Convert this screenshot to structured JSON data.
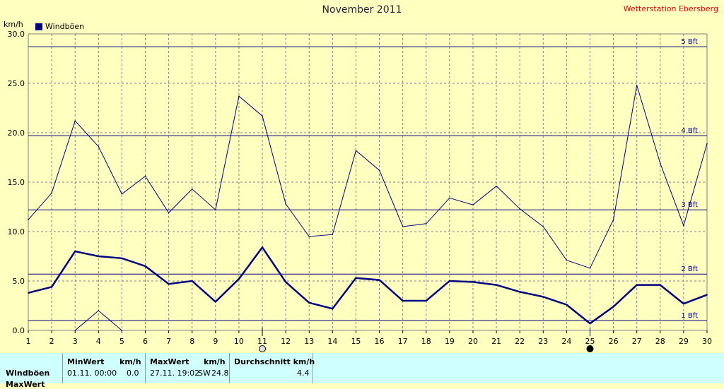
{
  "header": {
    "title": "November 2011",
    "station": "Wetterstation Ebersberg",
    "unit": "km/h"
  },
  "legend": {
    "label": "Windböen"
  },
  "chart_data": {
    "type": "line",
    "title": "November 2011",
    "ylabel": "km/h",
    "xlim": [
      1,
      30
    ],
    "ylim": [
      0,
      30
    ],
    "grid": true,
    "legend_position": "top-left",
    "x_ticks": [
      1,
      2,
      3,
      4,
      5,
      6,
      7,
      8,
      9,
      10,
      11,
      12,
      13,
      14,
      15,
      16,
      17,
      18,
      19,
      20,
      21,
      22,
      23,
      24,
      25,
      26,
      27,
      28,
      29,
      30
    ],
    "y_ticks": [
      "0.0",
      "5.0",
      "10.0",
      "15.0",
      "20.0",
      "25.0",
      "30.0"
    ],
    "beaufort_lines": [
      {
        "label": "1 Bft",
        "value": 1.0
      },
      {
        "label": "2 Bft",
        "value": 5.7
      },
      {
        "label": "3 Bft",
        "value": 12.2
      },
      {
        "label": "4 Bft",
        "value": 19.7
      },
      {
        "label": "5 Bft",
        "value": 28.7
      }
    ],
    "series": [
      {
        "name": "Windböen",
        "role": "average",
        "x": [
          1,
          2,
          3,
          4,
          5,
          6,
          7,
          8,
          9,
          10,
          11,
          12,
          13,
          14,
          15,
          16,
          17,
          18,
          19,
          20,
          21,
          22,
          23,
          24,
          25,
          26,
          27,
          28,
          29,
          30
        ],
        "values": [
          3.8,
          4.4,
          8.0,
          7.5,
          7.3,
          6.5,
          4.7,
          5.0,
          2.9,
          5.2,
          8.4,
          4.9,
          2.8,
          2.2,
          5.3,
          5.1,
          3.0,
          3.0,
          5.0,
          4.9,
          4.6,
          3.9,
          3.4,
          2.6,
          0.7,
          2.4,
          4.6,
          4.6,
          2.7,
          3.6
        ],
        "color": "#000080",
        "width": 2.5
      },
      {
        "role": "max",
        "x": [
          1,
          2,
          3,
          4,
          5,
          6,
          7,
          8,
          9,
          10,
          11,
          12,
          13,
          14,
          15,
          16,
          17,
          18,
          19,
          20,
          21,
          22,
          23,
          24,
          25,
          26,
          27,
          28,
          29,
          30
        ],
        "values": [
          11.2,
          13.9,
          21.2,
          18.6,
          13.8,
          15.6,
          11.9,
          14.3,
          12.2,
          23.7,
          21.7,
          12.8,
          9.5,
          9.7,
          18.2,
          16.2,
          10.5,
          10.8,
          13.4,
          12.7,
          14.6,
          12.3,
          10.5,
          7.1,
          6.3,
          11.2,
          24.8,
          16.9,
          10.6,
          18.9
        ],
        "color": "#000080",
        "width": 1
      },
      {
        "role": "min",
        "x": [
          3,
          4,
          5
        ],
        "values": [
          0.0,
          2.0,
          0.0
        ],
        "color": "#000080",
        "width": 1
      }
    ],
    "markers": [
      {
        "x": 11,
        "symbol": "full-moon"
      },
      {
        "x": 25,
        "symbol": "new-moon"
      }
    ]
  },
  "stats": {
    "row_labels": [
      "Windböen",
      "MaxWert"
    ],
    "min": {
      "header": "MinWert",
      "unit": "km/h",
      "date": "01.11.  00:00",
      "value": "0.0"
    },
    "max": {
      "header": "MaxWert",
      "unit": "km/h",
      "date": "27.11.  19:02",
      "dir": "SW",
      "value": "24.8"
    },
    "avg": {
      "header": "Durchschnitt km/h",
      "value": "4.4"
    }
  }
}
